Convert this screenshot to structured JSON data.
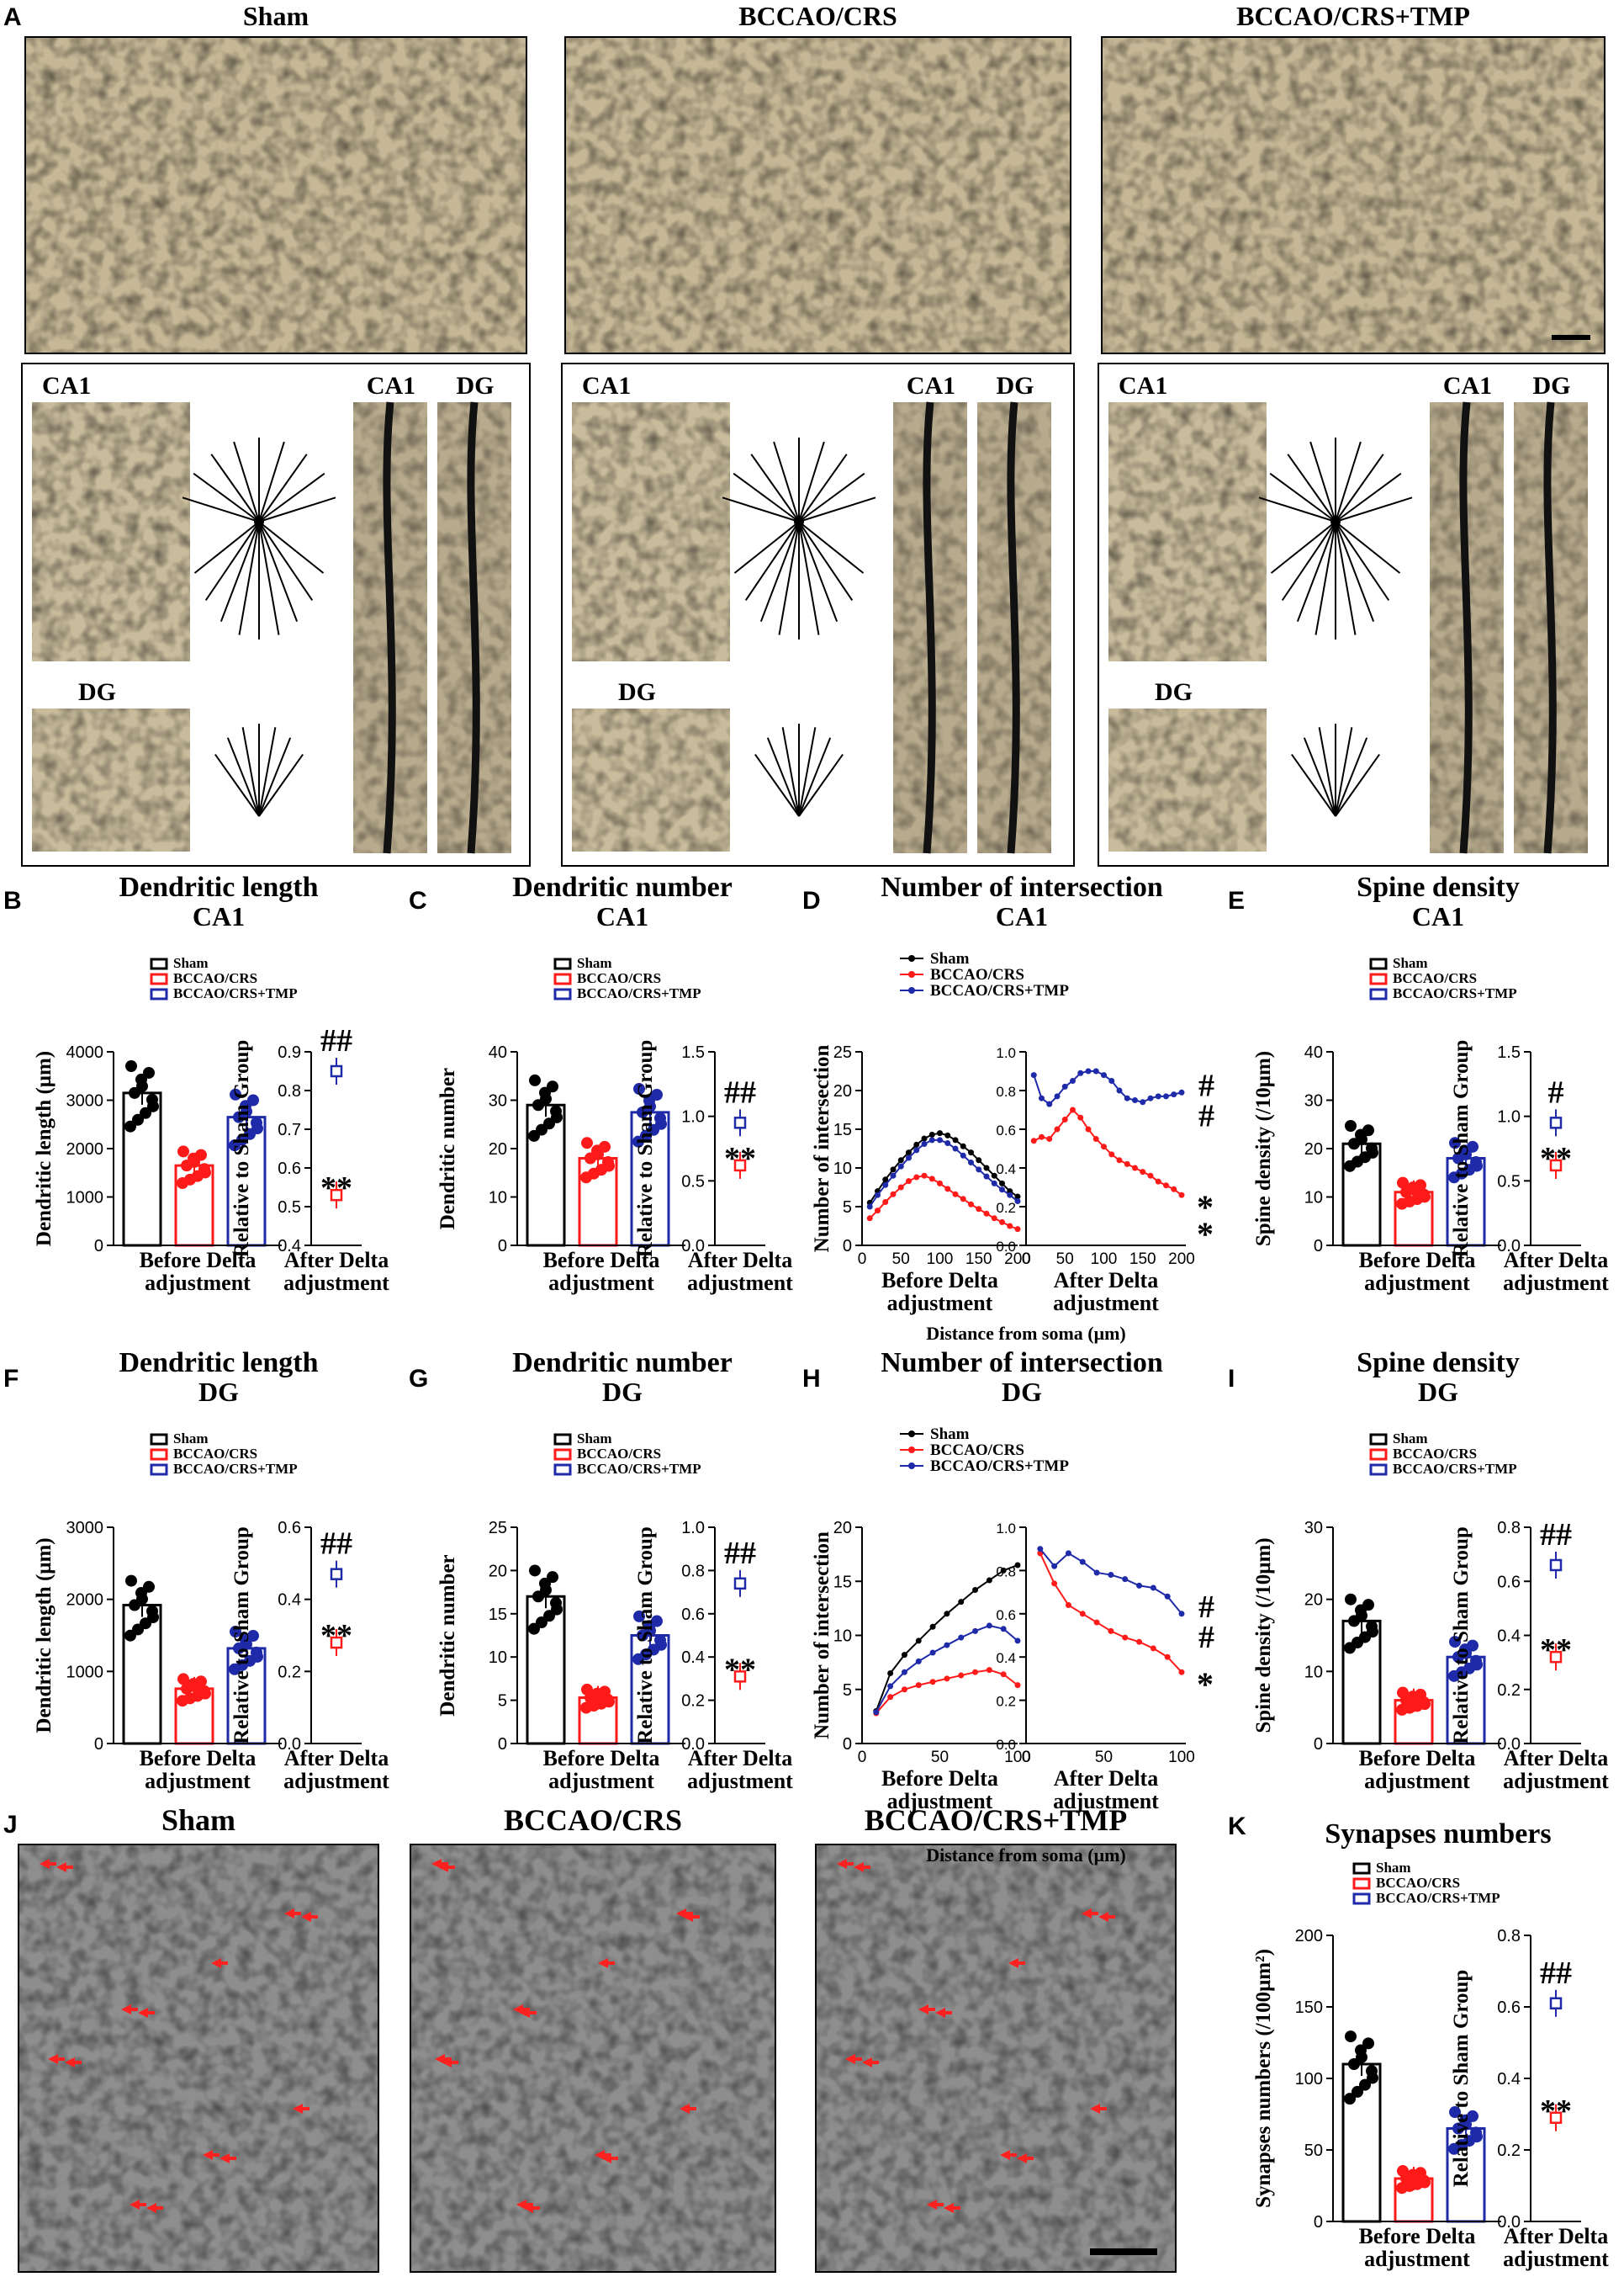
{
  "colors": {
    "sham": "#000000",
    "bcc": "#ff1a1a",
    "tmp": "#1e2aa8"
  },
  "panelA": {
    "letter": "A",
    "groups": [
      {
        "title": "Sham",
        "ca1": "CA1",
        "ca1b": "CA1",
        "dg": "DG",
        "dgb": "DG"
      },
      {
        "title": "BCCAO/CRS",
        "ca1": "CA1",
        "ca1b": "CA1",
        "dg": "DG",
        "dgb": "DG"
      },
      {
        "title": "BCCAO/CRS+TMP",
        "ca1": "CA1",
        "ca1b": "CA1",
        "dg": "DG",
        "dgb": "DG"
      }
    ]
  },
  "legend": {
    "sham": "Sham",
    "bcc": "BCCAO/CRS",
    "tmp": "BCCAO/CRS+TMP"
  },
  "common": {
    "before1": "Before Delta",
    "before2": "adjustment",
    "after1": "After Delta",
    "after2": "adjustment",
    "rel": "Relative to Sham Group",
    "dist": "Distance from soma (μm)"
  },
  "chart_data": [
    {
      "panel": "B",
      "type": "bar",
      "title": "Dendritic length",
      "subtitle": "CA1",
      "ylabel": "Dendritic length (μm)",
      "categories": [
        "Sham",
        "BCCAO/CRS",
        "BCCAO/CRS+TMP"
      ],
      "values": [
        3150,
        1650,
        2650
      ],
      "yticks": [
        "0",
        "1000",
        "2000",
        "3000",
        "4000"
      ],
      "ylim": [
        0,
        4000
      ],
      "inset": {
        "ylim": [
          0.4,
          0.9
        ],
        "yticks": [
          "0.4",
          "0.5",
          "0.6",
          "0.7",
          "0.8",
          "0.9"
        ],
        "bcc": 0.53,
        "tmp": 0.85,
        "mark_bcc": "**",
        "mark_tmp": "##"
      }
    },
    {
      "panel": "C",
      "type": "bar",
      "title": "Dendritic number",
      "subtitle": "CA1",
      "ylabel": "Dendritic number",
      "categories": [
        "Sham",
        "BCCAO/CRS",
        "BCCAO/CRS+TMP"
      ],
      "values": [
        29,
        18,
        27.5
      ],
      "yticks": [
        "0",
        "10",
        "20",
        "30",
        "40"
      ],
      "ylim": [
        0,
        40
      ],
      "inset": {
        "ylim": [
          0,
          1.5
        ],
        "yticks": [
          "0.0",
          "0.5",
          "1.0",
          "1.5"
        ],
        "bcc": 0.62,
        "tmp": 0.95,
        "mark_bcc": "**",
        "mark_tmp": "##"
      }
    },
    {
      "panel": "D",
      "type": "line",
      "title": "Number of intersection",
      "subtitle": "CA1",
      "ylabel": "Number of intersection",
      "x": [
        10,
        20,
        30,
        40,
        50,
        60,
        70,
        80,
        90,
        100,
        110,
        120,
        130,
        140,
        150,
        160,
        170,
        180,
        190,
        200
      ],
      "series": [
        {
          "name": "Sham",
          "values": [
            5.5,
            7,
            8.5,
            9.8,
            11,
            12,
            13,
            13.8,
            14.3,
            14.5,
            14.2,
            13.6,
            12.8,
            12,
            11,
            10,
            9,
            8,
            7,
            6.3
          ]
        },
        {
          "name": "BCCAO/CRS",
          "values": [
            3.5,
            4.5,
            5.6,
            6.6,
            7.5,
            8.3,
            8.8,
            9,
            8.6,
            8,
            7.3,
            6.6,
            6,
            5.3,
            4.7,
            4.1,
            3.5,
            3,
            2.5,
            2.1
          ]
        },
        {
          "name": "BCCAO/CRS+TMP",
          "values": [
            5,
            6.5,
            7.8,
            9,
            10.2,
            11.3,
            12.3,
            13.1,
            13.6,
            13.6,
            13.2,
            12.5,
            11.6,
            10.7,
            9.8,
            8.9,
            8,
            7.2,
            6.5,
            5.7
          ]
        }
      ],
      "yticks": [
        "0",
        "5",
        "10",
        "15",
        "20",
        "25"
      ],
      "xticks": [
        "0",
        "50",
        "100",
        "150",
        "200"
      ],
      "ylim": [
        0,
        25
      ],
      "inset": {
        "ylim": [
          0,
          1.0
        ],
        "yticks": [
          "0.0",
          "0.2",
          "0.4",
          "0.6",
          "0.8",
          "1.0"
        ],
        "xticks": [
          "0",
          "50",
          "100",
          "150",
          "200"
        ],
        "bcc": [
          0.54,
          0.56,
          0.55,
          0.6,
          0.65,
          0.7,
          0.66,
          0.6,
          0.55,
          0.51,
          0.47,
          0.44,
          0.42,
          0.4,
          0.38,
          0.36,
          0.33,
          0.31,
          0.29,
          0.26
        ],
        "tmp": [
          0.88,
          0.76,
          0.73,
          0.77,
          0.82,
          0.85,
          0.89,
          0.9,
          0.9,
          0.88,
          0.85,
          0.8,
          0.76,
          0.75,
          0.74,
          0.76,
          0.77,
          0.77,
          0.78,
          0.79
        ],
        "mark_bcc": "*\n*",
        "mark_tmp": "#\n#"
      }
    },
    {
      "panel": "E",
      "type": "bar",
      "title": "Spine density",
      "subtitle": "CA1",
      "ylabel": "Spine density (/10μm)",
      "categories": [
        "Sham",
        "BCCAO/CRS",
        "BCCAO/CRS+TMP"
      ],
      "values": [
        21,
        11,
        18
      ],
      "yticks": [
        "0",
        "10",
        "20",
        "30",
        "40"
      ],
      "ylim": [
        0,
        40
      ],
      "inset": {
        "ylim": [
          0,
          1.5
        ],
        "yticks": [
          "0.0",
          "0.5",
          "1.0",
          "1.5"
        ],
        "bcc": 0.62,
        "tmp": 0.95,
        "mark_bcc": "**",
        "mark_tmp": "#"
      }
    },
    {
      "panel": "F",
      "type": "bar",
      "title": "Dendritic length",
      "subtitle": "DG",
      "ylabel": "Dendritic length (μm)",
      "categories": [
        "Sham",
        "BCCAO/CRS",
        "BCCAO/CRS+TMP"
      ],
      "values": [
        1920,
        760,
        1320
      ],
      "yticks": [
        "0",
        "1000",
        "2000",
        "3000"
      ],
      "ylim": [
        0,
        3000
      ],
      "inset": {
        "ylim": [
          0,
          0.6
        ],
        "yticks": [
          "0.0",
          "0.2",
          "0.4",
          "0.6"
        ],
        "bcc": 0.28,
        "tmp": 0.47,
        "mark_bcc": "**",
        "mark_tmp": "##"
      }
    },
    {
      "panel": "G",
      "type": "bar",
      "title": "Dendritic number",
      "subtitle": "DG",
      "ylabel": "Dendritic number",
      "categories": [
        "Sham",
        "BCCAO/CRS",
        "BCCAO/CRS+TMP"
      ],
      "values": [
        17,
        5.3,
        12.5
      ],
      "yticks": [
        "0",
        "5",
        "10",
        "15",
        "20",
        "25"
      ],
      "ylim": [
        0,
        25
      ],
      "inset": {
        "ylim": [
          0,
          1.0
        ],
        "yticks": [
          "0.0",
          "0.2",
          "0.4",
          "0.6",
          "0.8",
          "1.0"
        ],
        "bcc": 0.31,
        "tmp": 0.74,
        "mark_bcc": "**",
        "mark_tmp": "##"
      }
    },
    {
      "panel": "H",
      "type": "line",
      "title": "Number of intersection",
      "subtitle": "DG",
      "ylabel": "Number of intersection",
      "x": [
        10,
        20,
        30,
        40,
        50,
        60,
        70,
        80,
        90,
        100,
        110
      ],
      "series": [
        {
          "name": "Sham",
          "values": [
            3,
            6.5,
            8.2,
            9.5,
            10.8,
            12,
            13.1,
            14.2,
            15.1,
            16,
            16.5
          ]
        },
        {
          "name": "BCCAO/CRS",
          "values": [
            2.8,
            4.3,
            5,
            5.4,
            5.7,
            6,
            6.3,
            6.6,
            6.8,
            6.4,
            5.4
          ]
        },
        {
          "name": "BCCAO/CRS+TMP",
          "values": [
            2.9,
            5.3,
            6.6,
            7.6,
            8.4,
            9.1,
            9.8,
            10.4,
            10.9,
            10.6,
            9.5
          ]
        }
      ],
      "yticks": [
        "0",
        "5",
        "10",
        "15",
        "20"
      ],
      "xticks": [
        "0",
        "50",
        "100"
      ],
      "ylim": [
        0,
        20
      ],
      "inset": {
        "ylim": [
          0,
          1.0
        ],
        "yticks": [
          "0.0",
          "0.2",
          "0.4",
          "0.6",
          "0.8",
          "1.0"
        ],
        "xticks": [
          "0",
          "50",
          "100"
        ],
        "bcc": [
          0.88,
          0.74,
          0.64,
          0.6,
          0.56,
          0.52,
          0.49,
          0.47,
          0.44,
          0.4,
          0.33
        ],
        "tmp": [
          0.9,
          0.82,
          0.88,
          0.84,
          0.79,
          0.78,
          0.76,
          0.73,
          0.72,
          0.68,
          0.6
        ],
        "mark_bcc": "*",
        "mark_tmp": "#\n#"
      }
    },
    {
      "panel": "I",
      "type": "bar",
      "title": "Spine density",
      "subtitle": "DG",
      "ylabel": "Spine density (/10μm)",
      "categories": [
        "Sham",
        "BCCAO/CRS",
        "BCCAO/CRS+TMP"
      ],
      "values": [
        17,
        6,
        12
      ],
      "yticks": [
        "0",
        "10",
        "20",
        "30"
      ],
      "ylim": [
        0,
        30
      ],
      "inset": {
        "ylim": [
          0,
          0.8
        ],
        "yticks": [
          "0.0",
          "0.2",
          "0.4",
          "0.6",
          "0.8"
        ],
        "bcc": 0.32,
        "tmp": 0.66,
        "mark_bcc": "**",
        "mark_tmp": "##"
      }
    },
    {
      "panel": "K",
      "type": "bar",
      "title": "Synapses numbers",
      "subtitle": "",
      "ylabel": "Synapses numbers (/100μm²)",
      "categories": [
        "Sham",
        "BCCAO/CRS",
        "BCCAO/CRS+TMP"
      ],
      "values": [
        110,
        30,
        65
      ],
      "yticks": [
        "0",
        "50",
        "100",
        "150",
        "200"
      ],
      "ylim": [
        0,
        200
      ],
      "inset": {
        "ylim": [
          0,
          0.8
        ],
        "yticks": [
          "0.0",
          "0.2",
          "0.4",
          "0.6",
          "0.8"
        ],
        "bcc": 0.29,
        "tmp": 0.61,
        "mark_bcc": "**",
        "mark_tmp": "##"
      }
    }
  ],
  "panelJ": {
    "letter": "J",
    "titles": [
      "Sham",
      "BCCAO/CRS",
      "BCCAO/CRS+TMP"
    ]
  }
}
